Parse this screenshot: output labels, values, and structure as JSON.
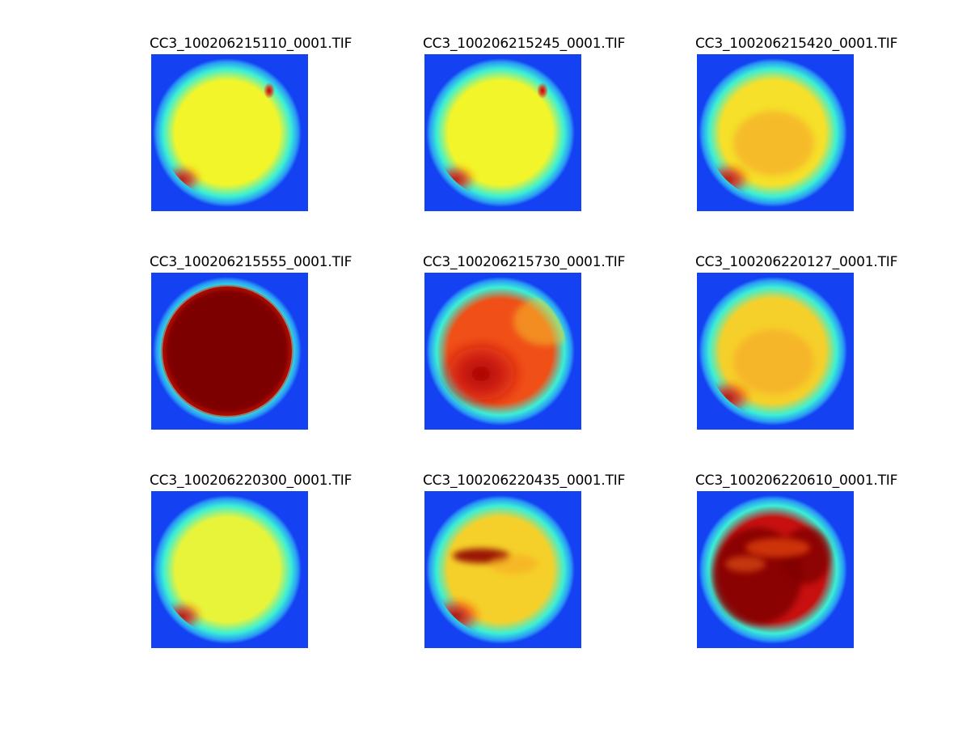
{
  "figure": {
    "panels": [
      {
        "title": "CC3_100206215110_0001.TIF",
        "colors": {
          "field": "#f2f52a",
          "rim": "#3af0d6",
          "hot": "#ea1f10",
          "core": "#b00000",
          "bg": "#1442f2"
        },
        "hot_level": 0.25,
        "features": [
          "hotspot-bottom-left",
          "hotspot-top-right"
        ]
      },
      {
        "title": "CC3_100206215245_0001.TIF",
        "colors": {
          "field": "#f2f52a",
          "rim": "#3af0d6",
          "hot": "#ea1f10",
          "core": "#b00000",
          "bg": "#1442f2"
        },
        "hot_level": 0.3,
        "features": [
          "hotspot-bottom-left",
          "hotspot-top-right"
        ]
      },
      {
        "title": "CC3_100206215420_0001.TIF",
        "colors": {
          "field": "#f6e02a",
          "rim": "#3af0d6",
          "hot": "#ea1f10",
          "core": "#b00000",
          "bg": "#1442f2"
        },
        "hot_level": 0.4,
        "features": [
          "hotspot-bottom-left",
          "warm-center"
        ]
      },
      {
        "title": "CC3_100206215555_0001.TIF",
        "colors": {
          "field": "#7d0000",
          "rim": "#3af0d6",
          "hot": "#ea1f10",
          "core": "#7d0000",
          "bg": "#1442f2"
        },
        "hot_level": 1.0,
        "features": [
          "saturated"
        ]
      },
      {
        "title": "CC3_100206215730_0001.TIF",
        "colors": {
          "field": "#f05018",
          "rim": "#3af0d6",
          "hot": "#c81010",
          "core": "#a00000",
          "bg": "#1442f2"
        },
        "hot_level": 0.75,
        "features": [
          "orange-field"
        ]
      },
      {
        "title": "CC3_100206220127_0001.TIF",
        "colors": {
          "field": "#f6d02a",
          "rim": "#3af0d6",
          "hot": "#ea1f10",
          "core": "#a00000",
          "bg": "#1442f2"
        },
        "hot_level": 0.45,
        "features": [
          "hotspot-bottom-left",
          "warm-center"
        ]
      },
      {
        "title": "CC3_100206220300_0001.TIF",
        "colors": {
          "field": "#e8f43a",
          "rim": "#3af0d6",
          "hot": "#ea1f10",
          "core": "#a00000",
          "bg": "#1442f2"
        },
        "hot_level": 0.3,
        "features": [
          "hotspot-bottom-left"
        ]
      },
      {
        "title": "CC3_100206220435_0001.TIF",
        "colors": {
          "field": "#f6d02a",
          "rim": "#3af0d6",
          "hot": "#ea1f10",
          "core": "#900000",
          "bg": "#1442f2"
        },
        "hot_level": 0.55,
        "features": [
          "hotspot-bottom-left",
          "dark-band-top"
        ]
      },
      {
        "title": "CC3_100206220610_0001.TIF",
        "colors": {
          "field": "#c81010",
          "rim": "#3af0d6",
          "hot": "#e02010",
          "core": "#800000",
          "bg": "#1442f2"
        },
        "hot_level": 0.9,
        "features": [
          "red-field",
          "patchy"
        ]
      }
    ]
  }
}
